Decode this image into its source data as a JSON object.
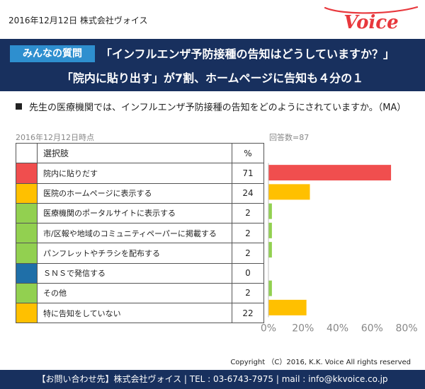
{
  "header": {
    "date_company": "2016年12月12日  株式会社ヴォイス",
    "logo_text": "Voice"
  },
  "banner": {
    "badge": "みんなの質問",
    "headline1": "「インフルエンザ予防接種の告知はどうしていますか？」",
    "headline2": "「院内に貼り出す」が7割、ホームページに告知も４分の１"
  },
  "question": "先生の医療機関では、インフルエンザ予防接種の告知をどのようにされていますか。（MA）",
  "as_of": "2016年12月12日時点",
  "respondents": "回答数=87",
  "table": {
    "col_choice": "選択肢",
    "col_percent": "%"
  },
  "chart_data": {
    "type": "bar",
    "orientation": "horizontal",
    "categories": [
      "院内に貼りだす",
      "医院のホームページに表示する",
      "医療機関のポータルサイトに表示する",
      "市/区報や地域のコミュニティペーパーに掲載する",
      "パンフレットやチラシを配布する",
      "ＳＮＳで発信する",
      "その他",
      "特に告知をしていない"
    ],
    "values": [
      71,
      24,
      2,
      2,
      2,
      0,
      2,
      22
    ],
    "colors": [
      "#f04e4e",
      "#ffc000",
      "#92d050",
      "#92d050",
      "#92d050",
      "#1f6fa8",
      "#92d050",
      "#ffc000"
    ],
    "xlim": [
      0,
      80
    ],
    "xticks": [
      "0%",
      "20%",
      "40%",
      "60%",
      "80%"
    ],
    "xlabel": "",
    "ylabel": "",
    "grid": false,
    "axis_color": "#bfbfbf"
  },
  "footer": {
    "copyright": "Copyright （C）2016, K.K. Voice All rights reserved",
    "contact": "【お問い合わせ先】株式会社ヴォイス | TEL : 03-6743-7975 | mail : info@kkvoice.co.jp"
  }
}
